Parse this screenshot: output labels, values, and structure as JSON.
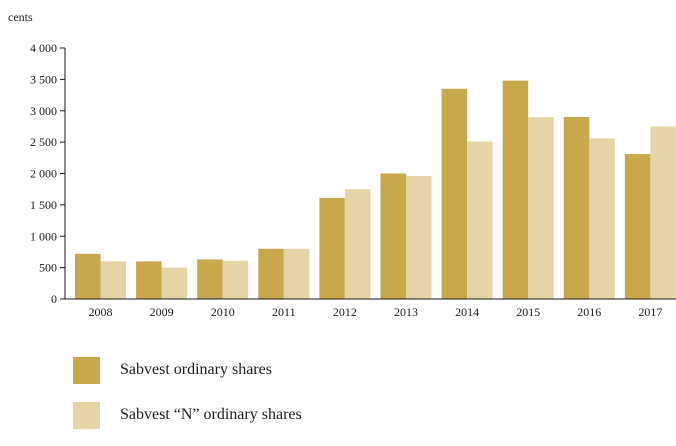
{
  "chart_data": {
    "type": "bar",
    "ylabel": "cents",
    "ylim": [
      0,
      4000
    ],
    "yticks": [
      0,
      500,
      1000,
      1500,
      2000,
      2500,
      3000,
      3500,
      4000
    ],
    "ytick_labels": [
      "0",
      "500",
      "1 000",
      "1 500",
      "2 000",
      "2 500",
      "3 000",
      "3 500",
      "4 000"
    ],
    "categories": [
      "2008",
      "2009",
      "2010",
      "2011",
      "2012",
      "2013",
      "2014",
      "2015",
      "2016",
      "2017"
    ],
    "series": [
      {
        "name": "Sabvest ordinary shares",
        "color": "#c9a84b",
        "values": [
          720,
          600,
          630,
          800,
          1610,
          2000,
          3350,
          3480,
          2900,
          2310
        ]
      },
      {
        "name": "Sabvest “N” ordinary shares",
        "color": "#e5d4a6",
        "values": [
          600,
          500,
          610,
          800,
          1750,
          1960,
          2510,
          2900,
          2560,
          2750
        ]
      }
    ],
    "legend_position": "bottom-left",
    "grid": false
  }
}
